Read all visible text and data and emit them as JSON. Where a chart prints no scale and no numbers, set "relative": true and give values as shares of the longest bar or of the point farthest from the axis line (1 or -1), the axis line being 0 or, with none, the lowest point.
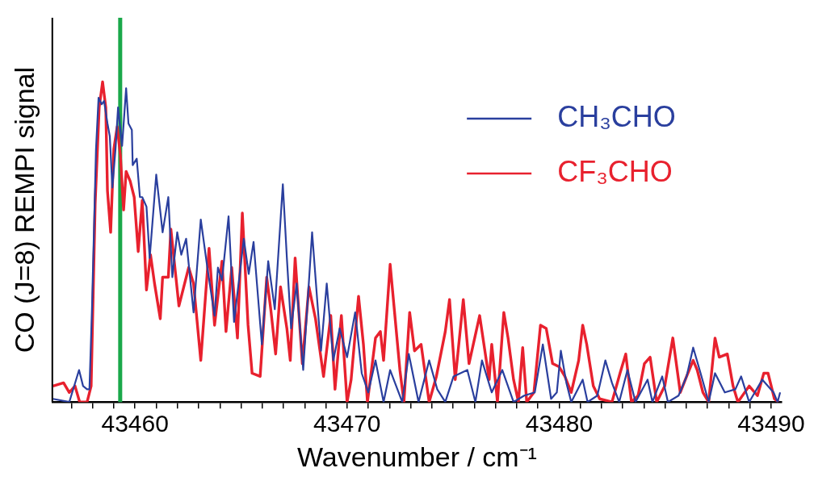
{
  "chart_data": {
    "type": "line",
    "xlabel": "Wavenumber / cm⁻¹",
    "ylabel": "CO (J=8) REMPI signal",
    "relative": true,
    "legend": "top right",
    "grid": false,
    "marker": "none",
    "line_style": "solid",
    "xlim": [
      43456.1,
      43490.5
    ],
    "xticks": [
      {
        "value": 43457,
        "label": null
      },
      {
        "value": 43458,
        "label": null
      },
      {
        "value": 43459,
        "label": null
      },
      43460,
      {
        "value": 43461,
        "label": null
      },
      {
        "value": 43462,
        "label": null
      },
      {
        "value": 43463,
        "label": null
      },
      {
        "value": 43464,
        "label": null
      },
      {
        "value": 43465,
        "label": null
      },
      {
        "value": 43466,
        "label": null
      },
      {
        "value": 43467,
        "label": null
      },
      {
        "value": 43468,
        "label": null
      },
      {
        "value": 43469,
        "label": null
      },
      43470,
      {
        "value": 43471,
        "label": null
      },
      {
        "value": 43472,
        "label": null
      },
      {
        "value": 43473,
        "label": null
      },
      {
        "value": 43474,
        "label": null
      },
      {
        "value": 43475,
        "label": null
      },
      {
        "value": 43476,
        "label": null
      },
      {
        "value": 43477,
        "label": null
      },
      {
        "value": 43478,
        "label": null
      },
      {
        "value": 43479,
        "label": null
      },
      43480,
      {
        "value": 43481,
        "label": null
      },
      {
        "value": 43482,
        "label": null
      },
      {
        "value": 43483,
        "label": null
      },
      {
        "value": 43484,
        "label": null
      },
      {
        "value": 43485,
        "label": null
      },
      {
        "value": 43486,
        "label": null
      },
      {
        "value": 43487,
        "label": null
      },
      {
        "value": 43488,
        "label": null
      },
      {
        "value": 43489,
        "label": null
      },
      43490
    ],
    "ref_lines": [
      {
        "axis": "x",
        "value": 43459.3,
        "color": "#1aa84a"
      }
    ],
    "series": [
      {
        "name": "CH₃CHO",
        "color": "#2a3f9e",
        "x": [
          43456.13,
          43456.9,
          43457.36,
          43457.55,
          43457.74,
          43457.85,
          43457.97,
          43458.16,
          43458.28,
          43458.43,
          43458.54,
          43458.7,
          43458.81,
          43458.93,
          43459.08,
          43459.2,
          43459.39,
          43459.58,
          43459.69,
          43459.85,
          43459.89,
          43460.08,
          43460.23,
          43460.34,
          43460.54,
          43460.69,
          43461.0,
          43461.3,
          43461.57,
          43461.76,
          43461.99,
          43462.18,
          43462.41,
          43462.76,
          43463.1,
          43463.41,
          43463.75,
          43463.91,
          43464.1,
          43464.41,
          43464.67,
          43465.13,
          43465.36,
          43465.59,
          43465.98,
          43466.28,
          43466.59,
          43466.97,
          43467.16,
          43467.36,
          43467.62,
          43467.93,
          43468.35,
          43468.77,
          43469.04,
          43469.35,
          43469.65,
          43470.0,
          43470.38,
          43470.69,
          43471.0,
          43471.34,
          43471.72,
          43472.03,
          43472.6,
          43472.91,
          43473.37,
          43473.87,
          43474.25,
          43474.63,
          43475.02,
          43475.67,
          43476.05,
          43476.36,
          43476.82,
          43477.32,
          43477.85,
          43478.35,
          43478.85,
          43479.23,
          43479.62,
          43479.89,
          43480.08,
          43480.34,
          43480.57,
          43481.11,
          43481.34,
          43481.8,
          43482.18,
          43482.49,
          43482.83,
          43483.22,
          43483.6,
          43484.17,
          43484.4,
          43484.86,
          43485.13,
          43485.63,
          43486.01,
          43486.32,
          43486.67,
          43487.05,
          43487.35,
          43487.81,
          43488.31,
          43488.58,
          43488.96,
          43489.58,
          43490.11,
          43490.3,
          43490.42
        ],
        "values": [
          0.01,
          0.0,
          0.1,
          0.05,
          0.04,
          0.04,
          0.29,
          0.79,
          0.95,
          0.93,
          0.94,
          0.87,
          0.83,
          0.67,
          0.79,
          0.92,
          0.8,
          0.98,
          0.87,
          0.85,
          0.74,
          0.76,
          0.64,
          0.64,
          0.61,
          0.45,
          0.71,
          0.53,
          0.64,
          0.39,
          0.53,
          0.46,
          0.51,
          0.28,
          0.57,
          0.42,
          0.27,
          0.42,
          0.38,
          0.58,
          0.25,
          0.51,
          0.4,
          0.5,
          0.18,
          0.44,
          0.29,
          0.68,
          0.45,
          0.23,
          0.37,
          0.1,
          0.53,
          0.16,
          0.37,
          0.13,
          0.23,
          0.14,
          0.28,
          0.09,
          0.03,
          0.13,
          0.0,
          0.1,
          0.0,
          0.15,
          0.0,
          0.13,
          0.04,
          0.0,
          0.08,
          0.1,
          0.0,
          0.13,
          0.03,
          0.1,
          0.0,
          0.02,
          0.03,
          0.18,
          0.01,
          0.03,
          0.16,
          0.06,
          0.0,
          0.07,
          0.0,
          0.02,
          0.13,
          0.06,
          0.0,
          0.1,
          0.0,
          0.07,
          0.0,
          0.08,
          0.0,
          0.02,
          0.08,
          0.17,
          0.09,
          0.0,
          0.09,
          0.03,
          0.04,
          0.08,
          0.0,
          0.07,
          0.03,
          0.0,
          0.03
        ]
      },
      {
        "name": "CF₃CHO",
        "color": "#e8212e",
        "x": [
          43456.13,
          43456.63,
          43456.9,
          43457.17,
          43457.39,
          43457.74,
          43457.93,
          43458.12,
          43458.31,
          43458.47,
          43458.62,
          43458.7,
          43458.85,
          43459.0,
          43459.16,
          43459.31,
          43459.46,
          43459.58,
          43459.77,
          43459.96,
          43460.15,
          43460.34,
          43460.54,
          43460.73,
          43460.92,
          43461.19,
          43461.3,
          43461.57,
          43461.69,
          43462.07,
          43462.53,
          43462.76,
          43463.1,
          43463.49,
          43463.75,
          43464.1,
          43464.29,
          43464.56,
          43464.83,
          43465.06,
          43465.33,
          43465.52,
          43465.9,
          43466.21,
          43466.4,
          43466.63,
          43466.86,
          43467.16,
          43467.32,
          43467.55,
          43467.89,
          43468.2,
          43468.51,
          43468.7,
          43468.89,
          43469.23,
          43469.43,
          43469.73,
          43470.0,
          43470.19,
          43470.54,
          43470.77,
          43470.96,
          43471.34,
          43471.57,
          43471.72,
          43472.03,
          43472.49,
          43472.68,
          43472.95,
          43473.18,
          43473.49,
          43473.87,
          43474.21,
          43474.63,
          43474.83,
          43475.1,
          43475.48,
          43475.75,
          43476.25,
          43476.7,
          43476.82,
          43477.09,
          43477.39,
          43477.59,
          43477.85,
          43478.08,
          43478.28,
          43478.47,
          43478.81,
          43479.12,
          43479.39,
          43479.69,
          43480.0,
          43480.27,
          43480.57,
          43480.92,
          43481.11,
          43481.3,
          43481.61,
          43481.91,
          43482.49,
          43482.87,
          43483.14,
          43483.41,
          43483.72,
          43484.02,
          43484.29,
          43484.6,
          43484.98,
          43485.36,
          43485.71,
          43486.01,
          43486.32,
          43486.51,
          43486.78,
          43487.05,
          43487.35,
          43487.55,
          43487.93,
          43488.2,
          43488.43,
          43488.96,
          43489.35,
          43489.65,
          43489.85,
          43490.15,
          43490.34
        ],
        "values": [
          0.05,
          0.06,
          0.03,
          0.05,
          0.0,
          0.0,
          0.05,
          0.62,
          0.92,
          1.0,
          0.92,
          0.66,
          0.53,
          0.79,
          0.86,
          0.77,
          0.6,
          0.72,
          0.69,
          0.64,
          0.47,
          0.63,
          0.35,
          0.46,
          0.37,
          0.26,
          0.39,
          0.39,
          0.54,
          0.3,
          0.42,
          0.37,
          0.13,
          0.48,
          0.24,
          0.44,
          0.22,
          0.42,
          0.2,
          0.59,
          0.24,
          0.09,
          0.08,
          0.39,
          0.29,
          0.15,
          0.36,
          0.23,
          0.13,
          0.45,
          0.12,
          0.36,
          0.26,
          0.17,
          0.08,
          0.27,
          0.04,
          0.27,
          0.0,
          0.07,
          0.33,
          0.18,
          0.0,
          0.2,
          0.22,
          0.13,
          0.43,
          0.1,
          0.0,
          0.28,
          0.16,
          0.18,
          0.0,
          0.08,
          0.22,
          0.32,
          0.07,
          0.32,
          0.12,
          0.27,
          0.07,
          0.18,
          0.0,
          0.28,
          0.2,
          0.07,
          0.0,
          0.17,
          0.0,
          0.03,
          0.24,
          0.23,
          0.12,
          0.11,
          0.08,
          0.03,
          0.13,
          0.24,
          0.18,
          0.05,
          0.01,
          0.0,
          0.09,
          0.15,
          0.0,
          0.02,
          0.12,
          0.14,
          0.0,
          0.05,
          0.2,
          0.03,
          0.08,
          0.13,
          0.1,
          0.03,
          0.0,
          0.2,
          0.14,
          0.15,
          0.05,
          0.0,
          0.05,
          0.02,
          0.09,
          0.09,
          0.01,
          0.0
        ]
      }
    ]
  }
}
